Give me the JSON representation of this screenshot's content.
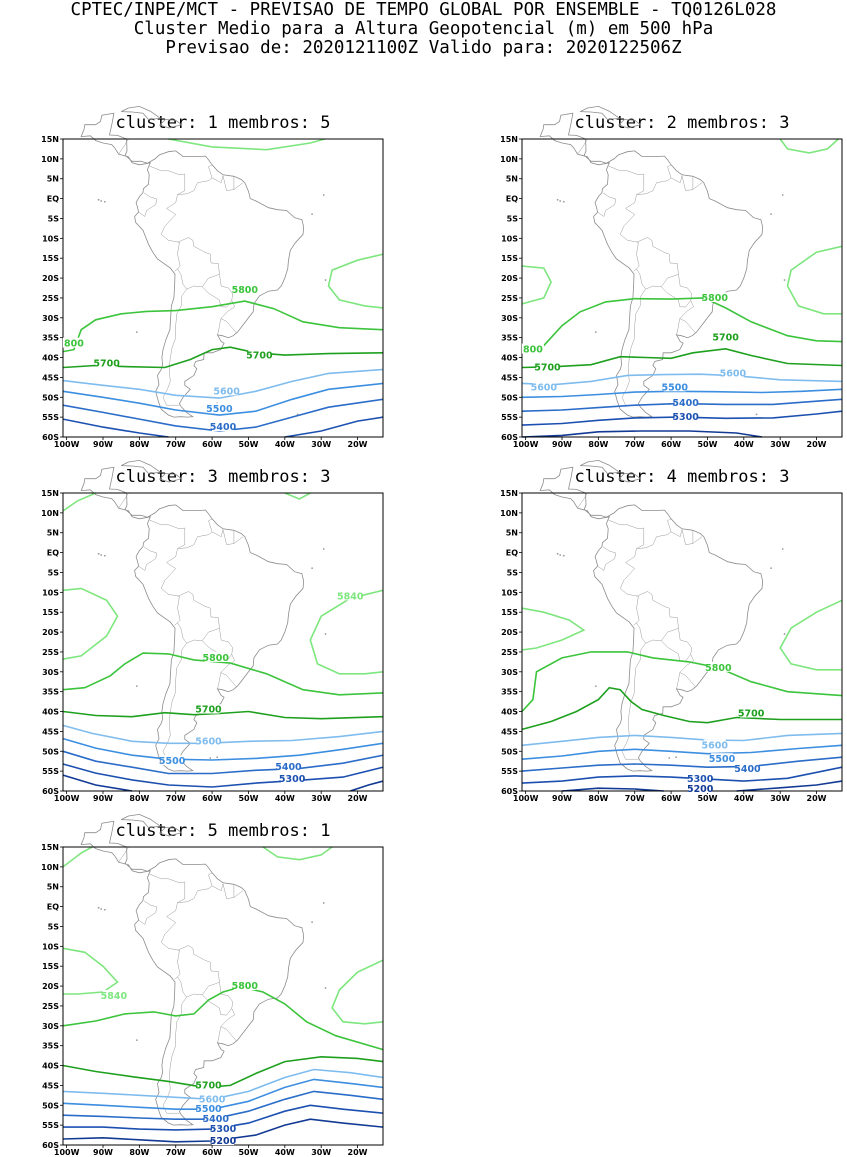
{
  "header": {
    "line1": "CPTEC/INPE/MCT - PREVISAO DE TEMPO GLOBAL POR ENSEMBLE - TQ0126L028",
    "line2": "Cluster Medio para a Altura Geopotencial (m) em 500 hPa",
    "line3": "Previsao de: 2020121100Z   Valido para: 2020122506Z"
  },
  "axes": {
    "lat_labels": [
      "15N",
      "10N",
      "5N",
      "EQ",
      "5S",
      "10S",
      "15S",
      "20S",
      "25S",
      "30S",
      "35S",
      "40S",
      "45S",
      "50S",
      "55S",
      "60S"
    ],
    "lon_labels": [
      "100W",
      "90W",
      "80W",
      "70W",
      "60W",
      "50W",
      "40W",
      "30W",
      "20W"
    ]
  },
  "colors": {
    "c5840": "#7ee67e",
    "c5800": "#3cc43c",
    "c5700": "#1ea01e",
    "c5600": "#7fbcee",
    "c5500": "#3c8ee0",
    "c5400": "#2a6cc8",
    "c5300": "#1c50b0",
    "c5200": "#123a94",
    "coast": "#8c8c8c"
  },
  "panels": [
    {
      "title": "cluster: 1   membros: 5",
      "labels": [
        {
          "text": "5800",
          "lon": -51,
          "lat": -23,
          "cls": "c5800"
        },
        {
          "text": "800",
          "lon": -98,
          "lat": -36.5,
          "cls": "c5800"
        },
        {
          "text": "5700",
          "lon": -89,
          "lat": -41.5,
          "cls": "c5700"
        },
        {
          "text": "5700",
          "lon": -47,
          "lat": -39.5,
          "cls": "c5700"
        },
        {
          "text": "5600",
          "lon": -56,
          "lat": -48.5,
          "cls": "c5600"
        },
        {
          "text": "5500",
          "lon": -58,
          "lat": -53,
          "cls": "c5500"
        },
        {
          "text": "5400",
          "lon": -57,
          "lat": -57.5,
          "cls": "c5400"
        }
      ]
    },
    {
      "title": "cluster: 2   membros: 3",
      "labels": [
        {
          "text": "5800",
          "lon": -48,
          "lat": -25,
          "cls": "c5800"
        },
        {
          "text": "800",
          "lon": -98,
          "lat": -38,
          "cls": "c5800"
        },
        {
          "text": "5700",
          "lon": -94,
          "lat": -42.5,
          "cls": "c5700"
        },
        {
          "text": "5700",
          "lon": -45,
          "lat": -35,
          "cls": "c5700"
        },
        {
          "text": "5600",
          "lon": -43,
          "lat": -44,
          "cls": "c5600"
        },
        {
          "text": "5600",
          "lon": -95,
          "lat": -47.5,
          "cls": "c5600"
        },
        {
          "text": "5500",
          "lon": -59,
          "lat": -47.5,
          "cls": "c5500"
        },
        {
          "text": "5400",
          "lon": -56,
          "lat": -51.5,
          "cls": "c5400"
        },
        {
          "text": "5300",
          "lon": -56,
          "lat": -55,
          "cls": "c5300"
        }
      ]
    },
    {
      "title": "cluster: 3   membros: 3",
      "labels": [
        {
          "text": "5840",
          "lon": -22,
          "lat": -11,
          "cls": "c5840"
        },
        {
          "text": "5800",
          "lon": -59,
          "lat": -26.5,
          "cls": "c5800"
        },
        {
          "text": "5700",
          "lon": -61,
          "lat": -39.5,
          "cls": "c5700"
        },
        {
          "text": "5600",
          "lon": -61,
          "lat": -47.5,
          "cls": "c5600"
        },
        {
          "text": "5500",
          "lon": -71,
          "lat": -52.5,
          "cls": "c5500"
        },
        {
          "text": "5400",
          "lon": -39,
          "lat": -54,
          "cls": "c5400"
        },
        {
          "text": "5300",
          "lon": -38,
          "lat": -57,
          "cls": "c5300"
        }
      ]
    },
    {
      "title": "cluster: 4   membros: 3",
      "labels": [
        {
          "text": "5800",
          "lon": -47,
          "lat": -29,
          "cls": "c5800"
        },
        {
          "text": "5700",
          "lon": -38,
          "lat": -40.5,
          "cls": "c5700"
        },
        {
          "text": "5600",
          "lon": -48,
          "lat": -48.5,
          "cls": "c5600"
        },
        {
          "text": "5500",
          "lon": -46,
          "lat": -52,
          "cls": "c5500"
        },
        {
          "text": "5400",
          "lon": -39,
          "lat": -54.5,
          "cls": "c5400"
        },
        {
          "text": "5300",
          "lon": -52,
          "lat": -57,
          "cls": "c5300"
        },
        {
          "text": "5200",
          "lon": -52,
          "lat": -59.5,
          "cls": "c5200"
        }
      ]
    },
    {
      "title": "cluster: 5   membros: 1",
      "labels": [
        {
          "text": "5840",
          "lon": -87,
          "lat": -22.5,
          "cls": "c5840"
        },
        {
          "text": "5800",
          "lon": -51,
          "lat": -20,
          "cls": "c5800"
        },
        {
          "text": "5700",
          "lon": -61,
          "lat": -45,
          "cls": "c5700"
        },
        {
          "text": "5600",
          "lon": -60,
          "lat": -48.5,
          "cls": "c5600"
        },
        {
          "text": "5500",
          "lon": -61,
          "lat": -51,
          "cls": "c5500"
        },
        {
          "text": "5400",
          "lon": -59,
          "lat": -53.5,
          "cls": "c5400"
        },
        {
          "text": "5300",
          "lon": -57,
          "lat": -56,
          "cls": "c5300"
        },
        {
          "text": "5200",
          "lon": -57,
          "lat": -59,
          "cls": "c5200"
        }
      ]
    }
  ]
}
